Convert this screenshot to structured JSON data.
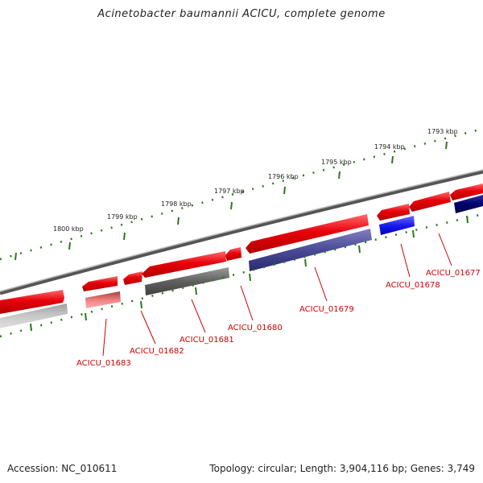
{
  "title": "Acinetobacter baumannii ACICU, complete genome",
  "footer": {
    "accession": "Accession: NC_010611",
    "summary": "Topology: circular; Length: 3,904,116 bp; Genes: 3,749"
  },
  "kbp_labels": [
    "1793 kbp",
    "1794 kbp",
    "1795 kbp",
    "1796 kbp",
    "1797 kbp",
    "1798 kbp",
    "1799 kbp",
    "1800 kbp"
  ],
  "gene_labels": [
    "ACICU_01677",
    "ACICU_01678",
    "ACICU_01679",
    "ACICU_01680",
    "ACICU_01681",
    "ACICU_01682",
    "ACICU_01683"
  ],
  "colors": {
    "backbone": "#8a8a8a",
    "forward_gene": "#e8000a",
    "forward_gene_light": "#f08080",
    "reverse_cds_gray": "#6e6e6e",
    "reverse_cds_light": "#c8c8c8",
    "reverse_cds_purple": "#4a4a96",
    "reverse_cds_blue": "#1a1aee",
    "reverse_cds_navy": "#000070",
    "tick": "#2a7a1a",
    "label": "#cc0000"
  }
}
